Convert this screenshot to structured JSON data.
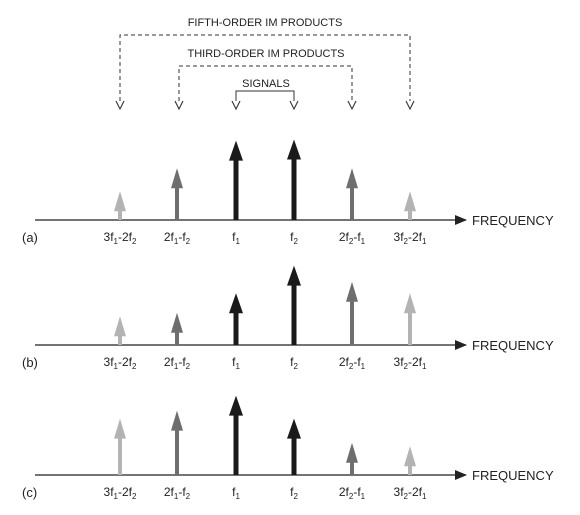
{
  "brackets": {
    "fifth": "FIFTH-ORDER IM PRODUCTS",
    "third": "THIRD-ORDER IM PRODUCTS",
    "signals": "SIGNALS"
  },
  "axis_label": "FREQUENCY",
  "ticks": [
    {
      "name": "tick-3f1-2f2",
      "parts": [
        [
          "3f",
          ""
        ],
        [
          "1",
          "sub"
        ],
        [
          "-2f",
          ""
        ],
        [
          "2",
          "sub"
        ]
      ]
    },
    {
      "name": "tick-2f1-f2",
      "parts": [
        [
          "2f",
          ""
        ],
        [
          "1",
          "sub"
        ],
        [
          "-f",
          ""
        ],
        [
          "2",
          "sub"
        ]
      ]
    },
    {
      "name": "tick-f1",
      "parts": [
        [
          "f",
          ""
        ],
        [
          "1",
          "sub"
        ]
      ]
    },
    {
      "name": "tick-f2",
      "parts": [
        [
          "f",
          ""
        ],
        [
          "2",
          "sub"
        ]
      ]
    },
    {
      "name": "tick-2f2-f1",
      "parts": [
        [
          "2f",
          ""
        ],
        [
          "2",
          "sub"
        ],
        [
          "-f",
          ""
        ],
        [
          "1",
          "sub"
        ]
      ]
    },
    {
      "name": "tick-3f2-2f1",
      "parts": [
        [
          "3f",
          ""
        ],
        [
          "2",
          "sub"
        ],
        [
          "-2f",
          ""
        ],
        [
          "1",
          "sub"
        ]
      ]
    }
  ],
  "colors": {
    "fifth": "#b3b3b3",
    "third": "#6e6e6e",
    "signal": "#1a1a1a",
    "axis": "#222222",
    "bracket": "#333333"
  },
  "panels": [
    {
      "label": "(a)",
      "levels": [
        0.25,
        0.45,
        0.69,
        0.7,
        0.45,
        0.25
      ]
    },
    {
      "label": "(b)",
      "levels": [
        0.25,
        0.28,
        0.45,
        0.69,
        0.55,
        0.45
      ]
    },
    {
      "label": "(c)",
      "levels": [
        0.49,
        0.56,
        0.69,
        0.49,
        0.28,
        0.25
      ]
    }
  ]
}
